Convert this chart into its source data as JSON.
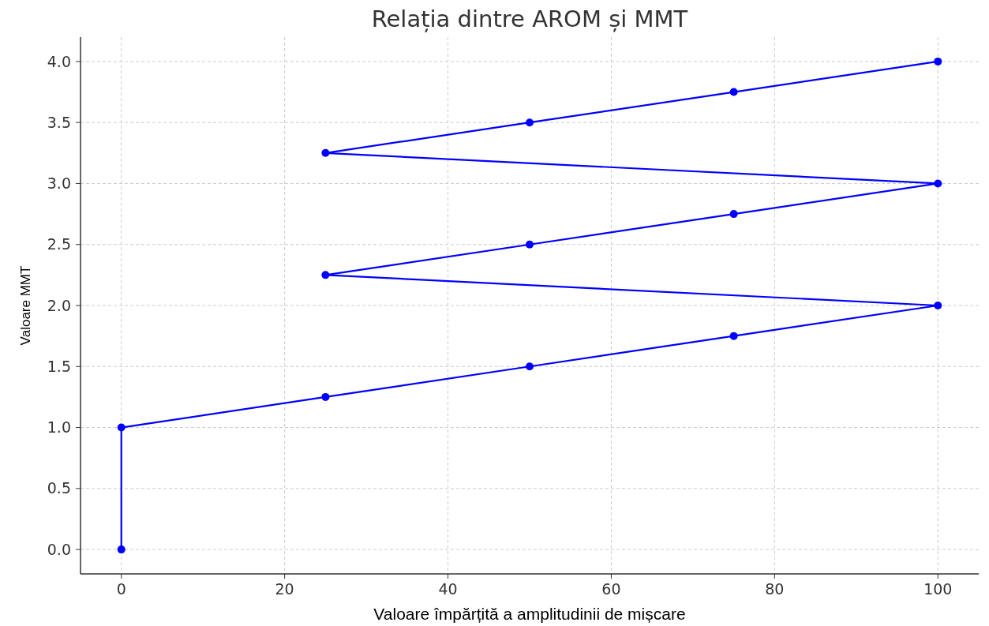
{
  "chart_data": {
    "type": "line",
    "title": "Relația dintre AROM și MMT",
    "xlabel": "Valoare împărțită a amplitudinii de mișcare",
    "ylabel": "Valoare MMT",
    "x": [
      0,
      0,
      25,
      50,
      75,
      100,
      25,
      50,
      75,
      100,
      25,
      50,
      75,
      100
    ],
    "series": [
      {
        "color": "#0000ff",
        "values": [
          0,
          1,
          1.25,
          1.5,
          1.75,
          2,
          2.25,
          2.5,
          2.75,
          3,
          3.25,
          3.5,
          3.75,
          4
        ]
      }
    ],
    "xlim": [
      -5,
      105
    ],
    "xticks": [
      0,
      20,
      40,
      60,
      80,
      100
    ],
    "ylim": [
      -0.2,
      4.2
    ],
    "yticks": [
      {
        "value": 0,
        "label": "0.0"
      },
      {
        "value": 0.5,
        "label": "0.5"
      },
      {
        "value": 1,
        "label": "1.0"
      },
      {
        "value": 1.5,
        "label": "1.5"
      },
      {
        "value": 2,
        "label": "2.0"
      },
      {
        "value": 2.5,
        "label": "2.5"
      },
      {
        "value": 3,
        "label": "3.0"
      },
      {
        "value": 3.5,
        "label": "3.5"
      },
      {
        "value": 4,
        "label": "4.0"
      }
    ],
    "grid": true,
    "marker": "circle",
    "line_style": "solid"
  }
}
